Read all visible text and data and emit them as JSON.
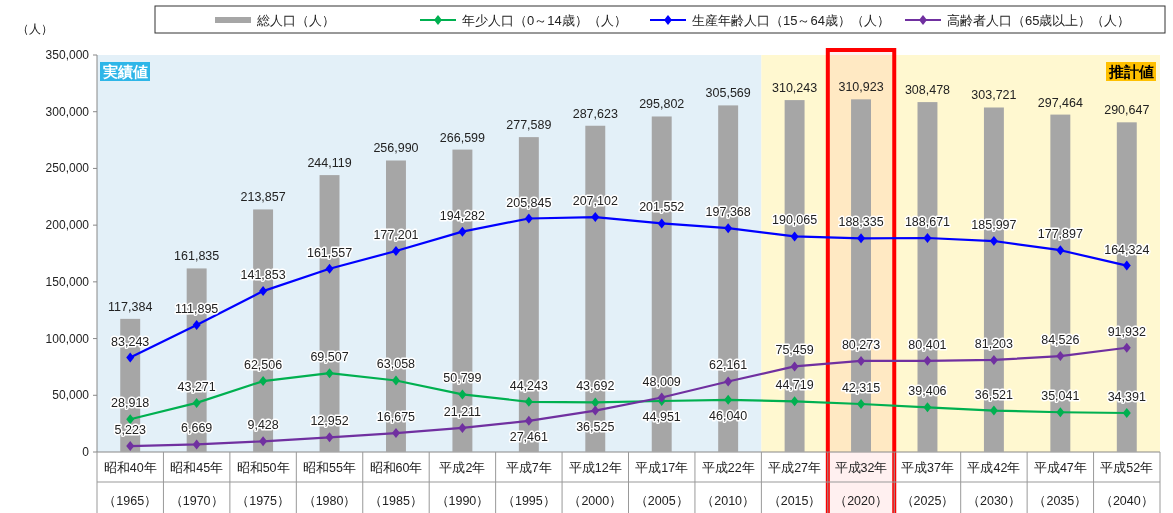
{
  "chart_data": {
    "type": "bar",
    "ylabel": "（人）",
    "ylim": [
      0,
      350000
    ],
    "yticks": [
      {
        "value": 0,
        "label": "0"
      },
      {
        "value": 50000,
        "label": "50,000"
      },
      {
        "value": 100000,
        "label": "100,000"
      },
      {
        "value": 150000,
        "label": "150,000"
      },
      {
        "value": 200000,
        "label": "200,000"
      },
      {
        "value": 250000,
        "label": "250,000"
      },
      {
        "value": 300000,
        "label": "300,000"
      },
      {
        "value": 350000,
        "label": "350,000"
      }
    ],
    "categories": [
      "昭和40年（1965）",
      "昭和45年（1970）",
      "昭和50年（1975）",
      "昭和55年（1980）",
      "昭和60年（1985）",
      "平成2年（1990）",
      "平成7年（1995）",
      "平成12年（2000）",
      "平成17年（2005）",
      "平成22年（2010）",
      "平成27年（2015）",
      "平成32年（2020）",
      "平成37年（2025）",
      "平成42年（2030）",
      "平成47年（2035）",
      "平成52年（2040）"
    ],
    "legend": "top",
    "marker": "diamond",
    "grid": false,
    "series": [
      {
        "name": "総人口（人）",
        "color": "#a6a6a6",
        "values": [
          117384,
          161835,
          213857,
          244119,
          256990,
          266599,
          277589,
          287623,
          295802,
          305569,
          310243,
          310923,
          308478,
          303721,
          297464,
          290647
        ],
        "value_labels": [
          "117,384",
          "161,835",
          "213,857",
          "244,119",
          "256,990",
          "266,599",
          "277,589",
          "287,623",
          "295,802",
          "305,569",
          "310,243",
          "310,923",
          "308,478",
          "303,721",
          "297,464",
          "290,647"
        ]
      },
      {
        "name": "年少人口（0～14歳）（人）",
        "type": "line",
        "color": "#00b050",
        "values": [
          28918,
          43271,
          62506,
          69507,
          63058,
          50799,
          44243,
          43692,
          44951,
          46040,
          44719,
          42315,
          39406,
          36521,
          35041,
          34391
        ],
        "value_labels": [
          "28,918",
          "43,271",
          "62,506",
          "69,507",
          "63,058",
          "50,799",
          "44,243",
          "43,692",
          "44,951",
          "46,040",
          "44,719",
          "42,315",
          "39,406",
          "36,521",
          "35,041",
          "34,391"
        ]
      },
      {
        "name": "生産年齢人口（15～64歳）（人）",
        "type": "line",
        "color": "#0000ff",
        "values": [
          83243,
          111895,
          141853,
          161557,
          177201,
          194282,
          205845,
          207102,
          201552,
          197368,
          190065,
          188335,
          188671,
          185997,
          177897,
          164324
        ],
        "value_labels": [
          "83,243",
          "111,895",
          "141,853",
          "161,557",
          "177,201",
          "194,282",
          "205,845",
          "207,102",
          "201,552",
          "197,368",
          "190,065",
          "188,335",
          "188,671",
          "185,997",
          "177,897",
          "164,324"
        ]
      },
      {
        "name": "高齢者人口（65歳以上）（人）",
        "type": "line",
        "color": "#7030a0",
        "values": [
          5223,
          6669,
          9428,
          12952,
          16675,
          21211,
          27461,
          36525,
          48009,
          62161,
          75459,
          80273,
          80401,
          81203,
          84526,
          91932
        ],
        "value_labels": [
          "5,223",
          "6,669",
          "9,428",
          "12,952",
          "16,675",
          "21,211",
          "27,461",
          "36,525",
          "48,009",
          "62,161",
          "75,459",
          "80,273",
          "80,401",
          "81,203",
          "84,526",
          "91,932"
        ]
      }
    ],
    "bands": [
      {
        "axis": "x",
        "from": "昭和40年（1965）",
        "to": "平成22年（2010）",
        "label": "実績値",
        "color": "#e3f0f8"
      },
      {
        "axis": "x",
        "from": "平成27年（2015）",
        "to": "平成52年（2040）",
        "label": "推計値",
        "color": "#fff8d0"
      },
      {
        "axis": "x",
        "from": "平成32年（2020）",
        "to": "平成32年（2020）",
        "color": "#ff0000"
      }
    ]
  }
}
